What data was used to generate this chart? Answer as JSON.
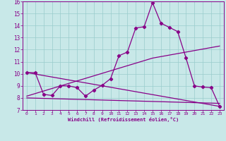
{
  "xlabel": "Windchill (Refroidissement éolien,°C)",
  "xlim": [
    -0.5,
    23.5
  ],
  "ylim": [
    7,
    16
  ],
  "yticks": [
    7,
    8,
    9,
    10,
    11,
    12,
    13,
    14,
    15,
    16
  ],
  "xticks": [
    0,
    1,
    2,
    3,
    4,
    5,
    6,
    7,
    8,
    9,
    10,
    11,
    12,
    13,
    14,
    15,
    16,
    17,
    18,
    19,
    20,
    21,
    22,
    23
  ],
  "bg_color": "#c8e8e8",
  "line_color": "#880088",
  "grid_color": "#99cccc",
  "main_line": {
    "x": [
      0,
      1,
      2,
      3,
      4,
      5,
      6,
      7,
      8,
      9,
      10,
      11,
      12,
      13,
      14,
      15,
      16,
      17,
      18,
      19,
      20,
      21,
      22,
      23
    ],
    "y": [
      10.1,
      10.1,
      8.3,
      8.2,
      9.0,
      9.0,
      8.85,
      8.15,
      8.65,
      9.05,
      9.6,
      11.5,
      11.8,
      13.8,
      13.9,
      15.9,
      14.2,
      13.85,
      13.5,
      11.3,
      9.0,
      8.9,
      8.85,
      7.3
    ]
  },
  "trend_lines": [
    {
      "x": [
        0,
        23
      ],
      "y": [
        10.1,
        7.3
      ]
    },
    {
      "x": [
        0,
        15,
        23
      ],
      "y": [
        8.15,
        11.3,
        12.3
      ]
    },
    {
      "x": [
        0,
        23
      ],
      "y": [
        8.0,
        7.55
      ]
    }
  ]
}
